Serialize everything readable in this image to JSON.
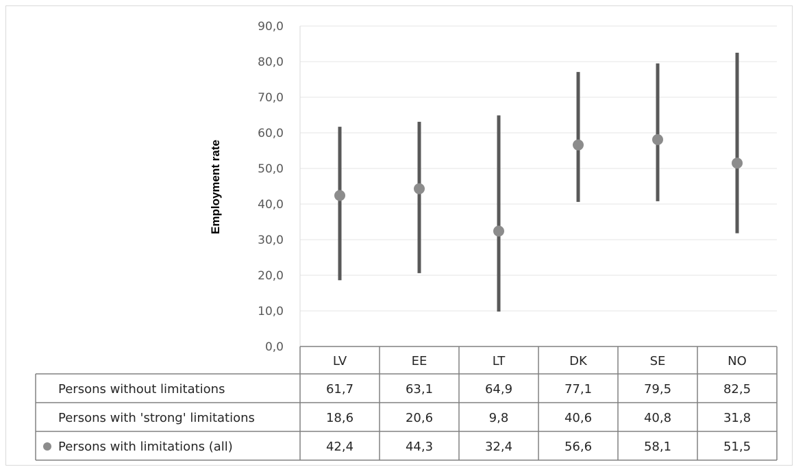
{
  "chart_data": {
    "type": "scatter",
    "ylabel": "Employment rate",
    "ylim": [
      0,
      90
    ],
    "yticks": [
      "0,0",
      "10,0",
      "20,0",
      "30,0",
      "40,0",
      "50,0",
      "60,0",
      "70,0",
      "80,0",
      "90,0"
    ],
    "grid": true,
    "categories": [
      "LV",
      "EE",
      "LT",
      "DK",
      "SE",
      "NO"
    ],
    "series": [
      {
        "name": "Persons without limitations",
        "values": [
          61.7,
          63.1,
          64.9,
          77.1,
          79.5,
          82.5
        ],
        "labels": [
          "61,7",
          "63,1",
          "64,9",
          "77,1",
          "79,5",
          "82,5"
        ]
      },
      {
        "name": "Persons with 'strong' limitations",
        "values": [
          18.6,
          20.6,
          9.8,
          40.6,
          40.8,
          31.8
        ],
        "labels": [
          "18,6",
          "20,6",
          "9,8",
          "40,6",
          "40,8",
          "31,8"
        ]
      },
      {
        "name": "Persons with limitations (all)",
        "values": [
          42.4,
          44.3,
          32.4,
          56.6,
          58.1,
          51.5
        ],
        "labels": [
          "42,4",
          "44,3",
          "32,4",
          "56,6",
          "58,1",
          "51,5"
        ]
      }
    ],
    "colors": {
      "range_line": "#595959",
      "marker": "#8c8c8c",
      "grid": "#e6e6e6",
      "table_border": "#808080"
    }
  }
}
